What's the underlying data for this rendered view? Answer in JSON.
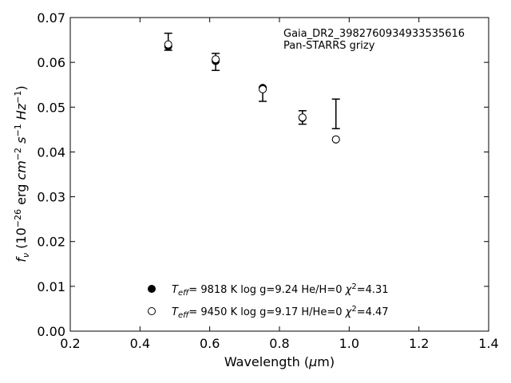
{
  "chart_data": {
    "type": "scatter",
    "xlabel": "Wavelength (μm)",
    "ylabel": "fν (10⁻²⁶ erg cm⁻² s⁻¹ Hz⁻¹)",
    "xlim": [
      0.2,
      1.4
    ],
    "ylim": [
      0.0,
      0.07
    ],
    "xticks": [
      "0.2",
      "0.4",
      "0.6",
      "0.8",
      "1.0",
      "1.2",
      "1.4"
    ],
    "yticks": [
      "0.00",
      "0.01",
      "0.02",
      "0.03",
      "0.04",
      "0.05",
      "0.06",
      "0.07"
    ],
    "grid": false,
    "annotation": {
      "line1": "Gaia_DR2_3982760934933535616",
      "line2": "Pan-STARRS grizy"
    },
    "errorbars": [
      {
        "x": 0.481,
        "y": 0.0646,
        "yerr": 0.0019
      },
      {
        "x": 0.617,
        "y": 0.0601,
        "yerr": 0.0019
      },
      {
        "x": 0.752,
        "y": 0.0529,
        "yerr": 0.0016
      },
      {
        "x": 0.866,
        "y": 0.0477,
        "yerr": 0.0015
      },
      {
        "x": 0.962,
        "y": 0.0485,
        "yerr": 0.0033
      }
    ],
    "series": [
      {
        "name": "He/H=0",
        "marker": "filled-circle",
        "legend": {
          "teff": "9818 K",
          "logg": "log g=9.24",
          "comp": "He/H=0",
          "chi2": "=4.31"
        },
        "points": [
          {
            "x": 0.481,
            "y": 0.0636
          },
          {
            "x": 0.617,
            "y": 0.0603
          },
          {
            "x": 0.752,
            "y": 0.0543
          },
          {
            "x": 0.866,
            "y": 0.0476
          },
          {
            "x": 0.962,
            "y": 0.0428
          }
        ]
      },
      {
        "name": "H/He=0",
        "marker": "open-circle",
        "legend": {
          "teff": "9450 K",
          "logg": "log g=9.17",
          "comp": "H/He=0",
          "chi2": "=4.47"
        },
        "points": [
          {
            "x": 0.481,
            "y": 0.064
          },
          {
            "x": 0.617,
            "y": 0.0607
          },
          {
            "x": 0.752,
            "y": 0.054
          },
          {
            "x": 0.866,
            "y": 0.0477
          },
          {
            "x": 0.962,
            "y": 0.0428
          }
        ]
      }
    ],
    "legend_position": "bottom-center"
  }
}
